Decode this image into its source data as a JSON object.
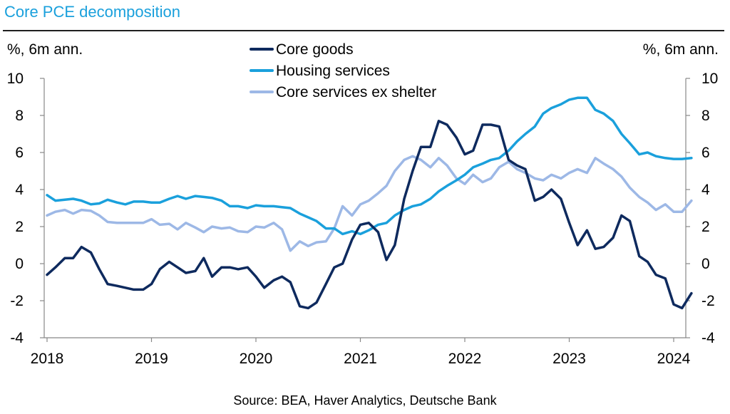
{
  "header": {
    "title": "Core PCE decomposition",
    "ylabel_left": "%, 6m ann.",
    "ylabel_right": "%, 6m ann.",
    "source": "Source: BEA, Haver Analytics, Deutsche Bank"
  },
  "chart_data": {
    "type": "line",
    "title": "Core PCE decomposition",
    "ylabel": "%, 6m ann.",
    "ylabel_right": "%, 6m ann.",
    "xlim": [
      2018.0,
      2024.0
    ],
    "ylim": [
      -4,
      10
    ],
    "y_ticks": [
      -4,
      -2,
      0,
      2,
      4,
      6,
      8,
      10
    ],
    "x_ticks": [
      2018,
      2019,
      2020,
      2021,
      2022,
      2023,
      2024
    ],
    "x_tick_labels": [
      "2018",
      "2019",
      "2020",
      "2021",
      "2022",
      "2023",
      "2024"
    ],
    "y_tick_labels": [
      "-4",
      "-2",
      "0",
      "2",
      "4",
      "6",
      "8",
      "10"
    ],
    "grid": false,
    "legend_position": "top-center",
    "series": [
      {
        "name": "Core goods",
        "color": "#0e2a5e",
        "width": 3.5,
        "points": [
          [
            2018.0,
            -0.6
          ],
          [
            2018.08,
            -0.2
          ],
          [
            2018.17,
            0.3
          ],
          [
            2018.25,
            0.3
          ],
          [
            2018.33,
            0.9
          ],
          [
            2018.42,
            0.6
          ],
          [
            2018.5,
            -0.3
          ],
          [
            2018.58,
            -1.1
          ],
          [
            2018.67,
            -1.2
          ],
          [
            2018.75,
            -1.3
          ],
          [
            2018.83,
            -1.4
          ],
          [
            2018.92,
            -1.4
          ],
          [
            2019.0,
            -1.1
          ],
          [
            2019.08,
            -0.3
          ],
          [
            2019.17,
            0.1
          ],
          [
            2019.25,
            -0.2
          ],
          [
            2019.33,
            -0.5
          ],
          [
            2019.42,
            -0.4
          ],
          [
            2019.5,
            0.3
          ],
          [
            2019.58,
            -0.7
          ],
          [
            2019.67,
            -0.2
          ],
          [
            2019.75,
            -0.2
          ],
          [
            2019.83,
            -0.3
          ],
          [
            2019.92,
            -0.2
          ],
          [
            2020.0,
            -0.7
          ],
          [
            2020.08,
            -1.3
          ],
          [
            2020.17,
            -0.9
          ],
          [
            2020.25,
            -0.7
          ],
          [
            2020.33,
            -1.0
          ],
          [
            2020.42,
            -2.3
          ],
          [
            2020.5,
            -2.4
          ],
          [
            2020.58,
            -2.1
          ],
          [
            2020.67,
            -1.1
          ],
          [
            2020.75,
            -0.2
          ],
          [
            2020.83,
            0.0
          ],
          [
            2020.92,
            1.3
          ],
          [
            2021.0,
            2.1
          ],
          [
            2021.08,
            2.2
          ],
          [
            2021.17,
            1.7
          ],
          [
            2021.25,
            0.2
          ],
          [
            2021.33,
            1.0
          ],
          [
            2021.42,
            3.5
          ],
          [
            2021.5,
            5.0
          ],
          [
            2021.58,
            6.3
          ],
          [
            2021.67,
            6.3
          ],
          [
            2021.75,
            7.7
          ],
          [
            2021.83,
            7.5
          ],
          [
            2021.92,
            6.8
          ],
          [
            2022.0,
            5.9
          ],
          [
            2022.08,
            6.1
          ],
          [
            2022.17,
            7.5
          ],
          [
            2022.25,
            7.5
          ],
          [
            2022.33,
            7.4
          ],
          [
            2022.42,
            5.6
          ],
          [
            2022.5,
            5.3
          ],
          [
            2022.58,
            5.1
          ],
          [
            2022.67,
            3.4
          ],
          [
            2022.75,
            3.6
          ],
          [
            2022.83,
            4.0
          ],
          [
            2022.92,
            3.5
          ],
          [
            2023.0,
            2.2
          ],
          [
            2023.08,
            1.0
          ],
          [
            2023.17,
            1.8
          ],
          [
            2023.25,
            0.8
          ],
          [
            2023.33,
            0.9
          ],
          [
            2023.42,
            1.4
          ],
          [
            2023.5,
            2.6
          ],
          [
            2023.58,
            2.3
          ],
          [
            2023.67,
            0.4
          ],
          [
            2023.75,
            0.1
          ],
          [
            2023.83,
            -0.6
          ],
          [
            2023.92,
            -0.8
          ],
          [
            2024.0,
            -2.2
          ],
          [
            2024.08,
            -2.4
          ],
          [
            2024.17,
            -1.6
          ]
        ]
      },
      {
        "name": "Housing services",
        "color": "#1aa0dc",
        "width": 3.5,
        "points": [
          [
            2018.0,
            3.7
          ],
          [
            2018.08,
            3.4
          ],
          [
            2018.17,
            3.45
          ],
          [
            2018.25,
            3.5
          ],
          [
            2018.33,
            3.4
          ],
          [
            2018.42,
            3.2
          ],
          [
            2018.5,
            3.25
          ],
          [
            2018.58,
            3.45
          ],
          [
            2018.67,
            3.3
          ],
          [
            2018.75,
            3.2
          ],
          [
            2018.83,
            3.35
          ],
          [
            2018.92,
            3.35
          ],
          [
            2019.0,
            3.3
          ],
          [
            2019.08,
            3.3
          ],
          [
            2019.17,
            3.5
          ],
          [
            2019.25,
            3.65
          ],
          [
            2019.33,
            3.5
          ],
          [
            2019.42,
            3.65
          ],
          [
            2019.5,
            3.6
          ],
          [
            2019.58,
            3.55
          ],
          [
            2019.67,
            3.4
          ],
          [
            2019.75,
            3.1
          ],
          [
            2019.83,
            3.1
          ],
          [
            2019.92,
            3.0
          ],
          [
            2020.0,
            3.15
          ],
          [
            2020.08,
            3.1
          ],
          [
            2020.17,
            3.1
          ],
          [
            2020.25,
            3.05
          ],
          [
            2020.33,
            3.0
          ],
          [
            2020.42,
            2.7
          ],
          [
            2020.5,
            2.5
          ],
          [
            2020.58,
            2.3
          ],
          [
            2020.67,
            1.9
          ],
          [
            2020.75,
            1.9
          ],
          [
            2020.83,
            1.6
          ],
          [
            2020.92,
            1.75
          ],
          [
            2021.0,
            1.6
          ],
          [
            2021.08,
            1.8
          ],
          [
            2021.17,
            2.1
          ],
          [
            2021.25,
            2.2
          ],
          [
            2021.33,
            2.6
          ],
          [
            2021.42,
            2.9
          ],
          [
            2021.5,
            3.1
          ],
          [
            2021.58,
            3.2
          ],
          [
            2021.67,
            3.5
          ],
          [
            2021.75,
            3.9
          ],
          [
            2021.83,
            4.2
          ],
          [
            2021.92,
            4.5
          ],
          [
            2022.0,
            4.8
          ],
          [
            2022.08,
            5.2
          ],
          [
            2022.17,
            5.4
          ],
          [
            2022.25,
            5.6
          ],
          [
            2022.33,
            5.7
          ],
          [
            2022.42,
            6.1
          ],
          [
            2022.5,
            6.6
          ],
          [
            2022.58,
            7.0
          ],
          [
            2022.67,
            7.4
          ],
          [
            2022.75,
            8.1
          ],
          [
            2022.83,
            8.4
          ],
          [
            2022.92,
            8.6
          ],
          [
            2023.0,
            8.85
          ],
          [
            2023.08,
            8.95
          ],
          [
            2023.17,
            8.95
          ],
          [
            2023.25,
            8.3
          ],
          [
            2023.33,
            8.1
          ],
          [
            2023.42,
            7.7
          ],
          [
            2023.5,
            7.0
          ],
          [
            2023.58,
            6.5
          ],
          [
            2023.67,
            5.9
          ],
          [
            2023.75,
            6.0
          ],
          [
            2023.83,
            5.8
          ],
          [
            2023.92,
            5.7
          ],
          [
            2024.0,
            5.65
          ],
          [
            2024.08,
            5.65
          ],
          [
            2024.17,
            5.7
          ]
        ]
      },
      {
        "name": "Core services ex shelter",
        "color": "#9db8e6",
        "width": 3.5,
        "points": [
          [
            2018.0,
            2.6
          ],
          [
            2018.08,
            2.8
          ],
          [
            2018.17,
            2.9
          ],
          [
            2018.25,
            2.7
          ],
          [
            2018.33,
            2.9
          ],
          [
            2018.42,
            2.85
          ],
          [
            2018.5,
            2.6
          ],
          [
            2018.58,
            2.25
          ],
          [
            2018.67,
            2.2
          ],
          [
            2018.75,
            2.2
          ],
          [
            2018.83,
            2.2
          ],
          [
            2018.92,
            2.2
          ],
          [
            2019.0,
            2.4
          ],
          [
            2019.08,
            2.1
          ],
          [
            2019.17,
            2.15
          ],
          [
            2019.25,
            1.85
          ],
          [
            2019.33,
            2.2
          ],
          [
            2019.42,
            1.95
          ],
          [
            2019.5,
            1.7
          ],
          [
            2019.58,
            2.0
          ],
          [
            2019.67,
            1.9
          ],
          [
            2019.75,
            1.95
          ],
          [
            2019.83,
            1.75
          ],
          [
            2019.92,
            1.7
          ],
          [
            2020.0,
            2.0
          ],
          [
            2020.08,
            1.95
          ],
          [
            2020.17,
            2.2
          ],
          [
            2020.25,
            1.85
          ],
          [
            2020.33,
            0.7
          ],
          [
            2020.42,
            1.2
          ],
          [
            2020.5,
            0.95
          ],
          [
            2020.58,
            1.15
          ],
          [
            2020.67,
            1.2
          ],
          [
            2020.75,
            1.9
          ],
          [
            2020.83,
            3.1
          ],
          [
            2020.92,
            2.6
          ],
          [
            2021.0,
            3.2
          ],
          [
            2021.08,
            3.4
          ],
          [
            2021.17,
            3.8
          ],
          [
            2021.25,
            4.2
          ],
          [
            2021.33,
            5.0
          ],
          [
            2021.42,
            5.6
          ],
          [
            2021.5,
            5.8
          ],
          [
            2021.58,
            5.6
          ],
          [
            2021.67,
            5.2
          ],
          [
            2021.75,
            5.7
          ],
          [
            2021.83,
            5.3
          ],
          [
            2021.92,
            4.6
          ],
          [
            2022.0,
            4.3
          ],
          [
            2022.08,
            4.8
          ],
          [
            2022.17,
            4.4
          ],
          [
            2022.25,
            4.6
          ],
          [
            2022.33,
            5.2
          ],
          [
            2022.42,
            5.5
          ],
          [
            2022.5,
            5.1
          ],
          [
            2022.58,
            4.9
          ],
          [
            2022.67,
            4.6
          ],
          [
            2022.75,
            4.5
          ],
          [
            2022.83,
            4.8
          ],
          [
            2022.92,
            4.6
          ],
          [
            2023.0,
            4.9
          ],
          [
            2023.08,
            5.1
          ],
          [
            2023.17,
            4.9
          ],
          [
            2023.25,
            5.7
          ],
          [
            2023.33,
            5.4
          ],
          [
            2023.42,
            5.1
          ],
          [
            2023.5,
            4.7
          ],
          [
            2023.58,
            4.1
          ],
          [
            2023.67,
            3.6
          ],
          [
            2023.75,
            3.3
          ],
          [
            2023.83,
            2.9
          ],
          [
            2023.92,
            3.2
          ],
          [
            2024.0,
            2.8
          ],
          [
            2024.08,
            2.8
          ],
          [
            2024.17,
            3.4
          ]
        ]
      }
    ]
  }
}
